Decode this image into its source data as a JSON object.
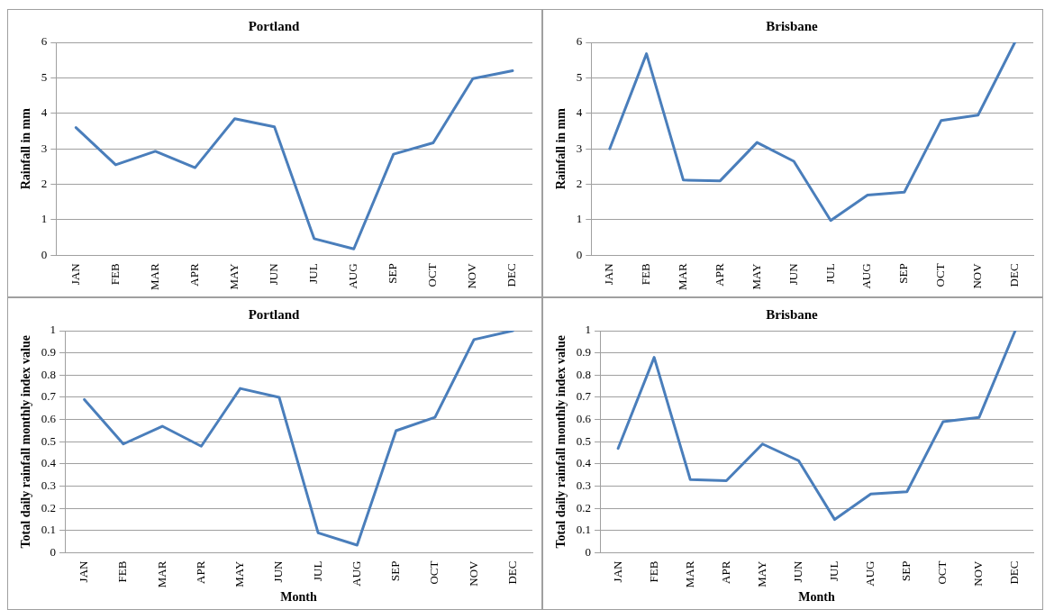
{
  "chart_data": [
    {
      "type": "line",
      "title": "Portland",
      "ylabel": "Rainfall in mm",
      "categories": [
        "JAN",
        "FEB",
        "MAR",
        "APR",
        "MAY",
        "JUN",
        "JUL",
        "AUG",
        "SEP",
        "OCT",
        "NOV",
        "DEC"
      ],
      "series": [
        {
          "color": "#4a7ebb",
          "values": [
            3.6,
            2.55,
            2.93,
            2.47,
            3.85,
            3.62,
            0.47,
            0.18,
            2.85,
            3.17,
            4.98,
            5.2
          ]
        }
      ],
      "ylim": [
        0,
        6
      ],
      "yticks": [
        0,
        1,
        2,
        3,
        4,
        5,
        6
      ],
      "grid": "y",
      "legend": false,
      "marker": "none"
    },
    {
      "type": "line",
      "title": "Brisbane",
      "ylabel": "Rainfall in mm",
      "categories": [
        "JAN",
        "FEB",
        "MAR",
        "APR",
        "MAY",
        "JUN",
        "JUL",
        "AUG",
        "SEP",
        "OCT",
        "NOV",
        "DEC"
      ],
      "series": [
        {
          "color": "#4a7ebb",
          "values": [
            3.0,
            5.68,
            2.12,
            2.1,
            3.18,
            2.65,
            0.98,
            1.7,
            1.78,
            3.8,
            3.95,
            6.0
          ]
        }
      ],
      "ylim": [
        0,
        6
      ],
      "yticks": [
        0,
        1,
        2,
        3,
        4,
        5,
        6
      ],
      "grid": "y",
      "legend": false,
      "marker": "none"
    },
    {
      "type": "line",
      "title": "Portland",
      "xlabel": "Month",
      "ylabel": "Total daily rainfall monthly index value",
      "categories": [
        "JAN",
        "FEB",
        "MAR",
        "APR",
        "MAY",
        "JUN",
        "JUL",
        "AUG",
        "SEP",
        "OCT",
        "NOV",
        "DEC"
      ],
      "series": [
        {
          "color": "#4a7ebb",
          "values": [
            0.69,
            0.49,
            0.57,
            0.48,
            0.74,
            0.7,
            0.09,
            0.035,
            0.55,
            0.61,
            0.96,
            1.0
          ]
        }
      ],
      "ylim": [
        0,
        1
      ],
      "yticks": [
        0,
        0.1,
        0.2,
        0.3,
        0.4,
        0.5,
        0.6,
        0.7,
        0.8,
        0.9,
        1
      ],
      "grid": "y",
      "legend": false,
      "marker": "none"
    },
    {
      "type": "line",
      "title": "Brisbane",
      "xlabel": "Month",
      "ylabel": "Total daily rainfall monthly index value",
      "categories": [
        "JAN",
        "FEB",
        "MAR",
        "APR",
        "MAY",
        "JUN",
        "JUL",
        "AUG",
        "SEP",
        "OCT",
        "NOV",
        "DEC"
      ],
      "series": [
        {
          "color": "#4a7ebb",
          "values": [
            0.47,
            0.88,
            0.33,
            0.325,
            0.49,
            0.415,
            0.15,
            0.265,
            0.275,
            0.59,
            0.61,
            1.0
          ]
        }
      ],
      "ylim": [
        0,
        1
      ],
      "yticks": [
        0,
        0.1,
        0.2,
        0.3,
        0.4,
        0.5,
        0.6,
        0.7,
        0.8,
        0.9,
        1
      ],
      "grid": "y",
      "legend": false,
      "marker": "none"
    }
  ]
}
